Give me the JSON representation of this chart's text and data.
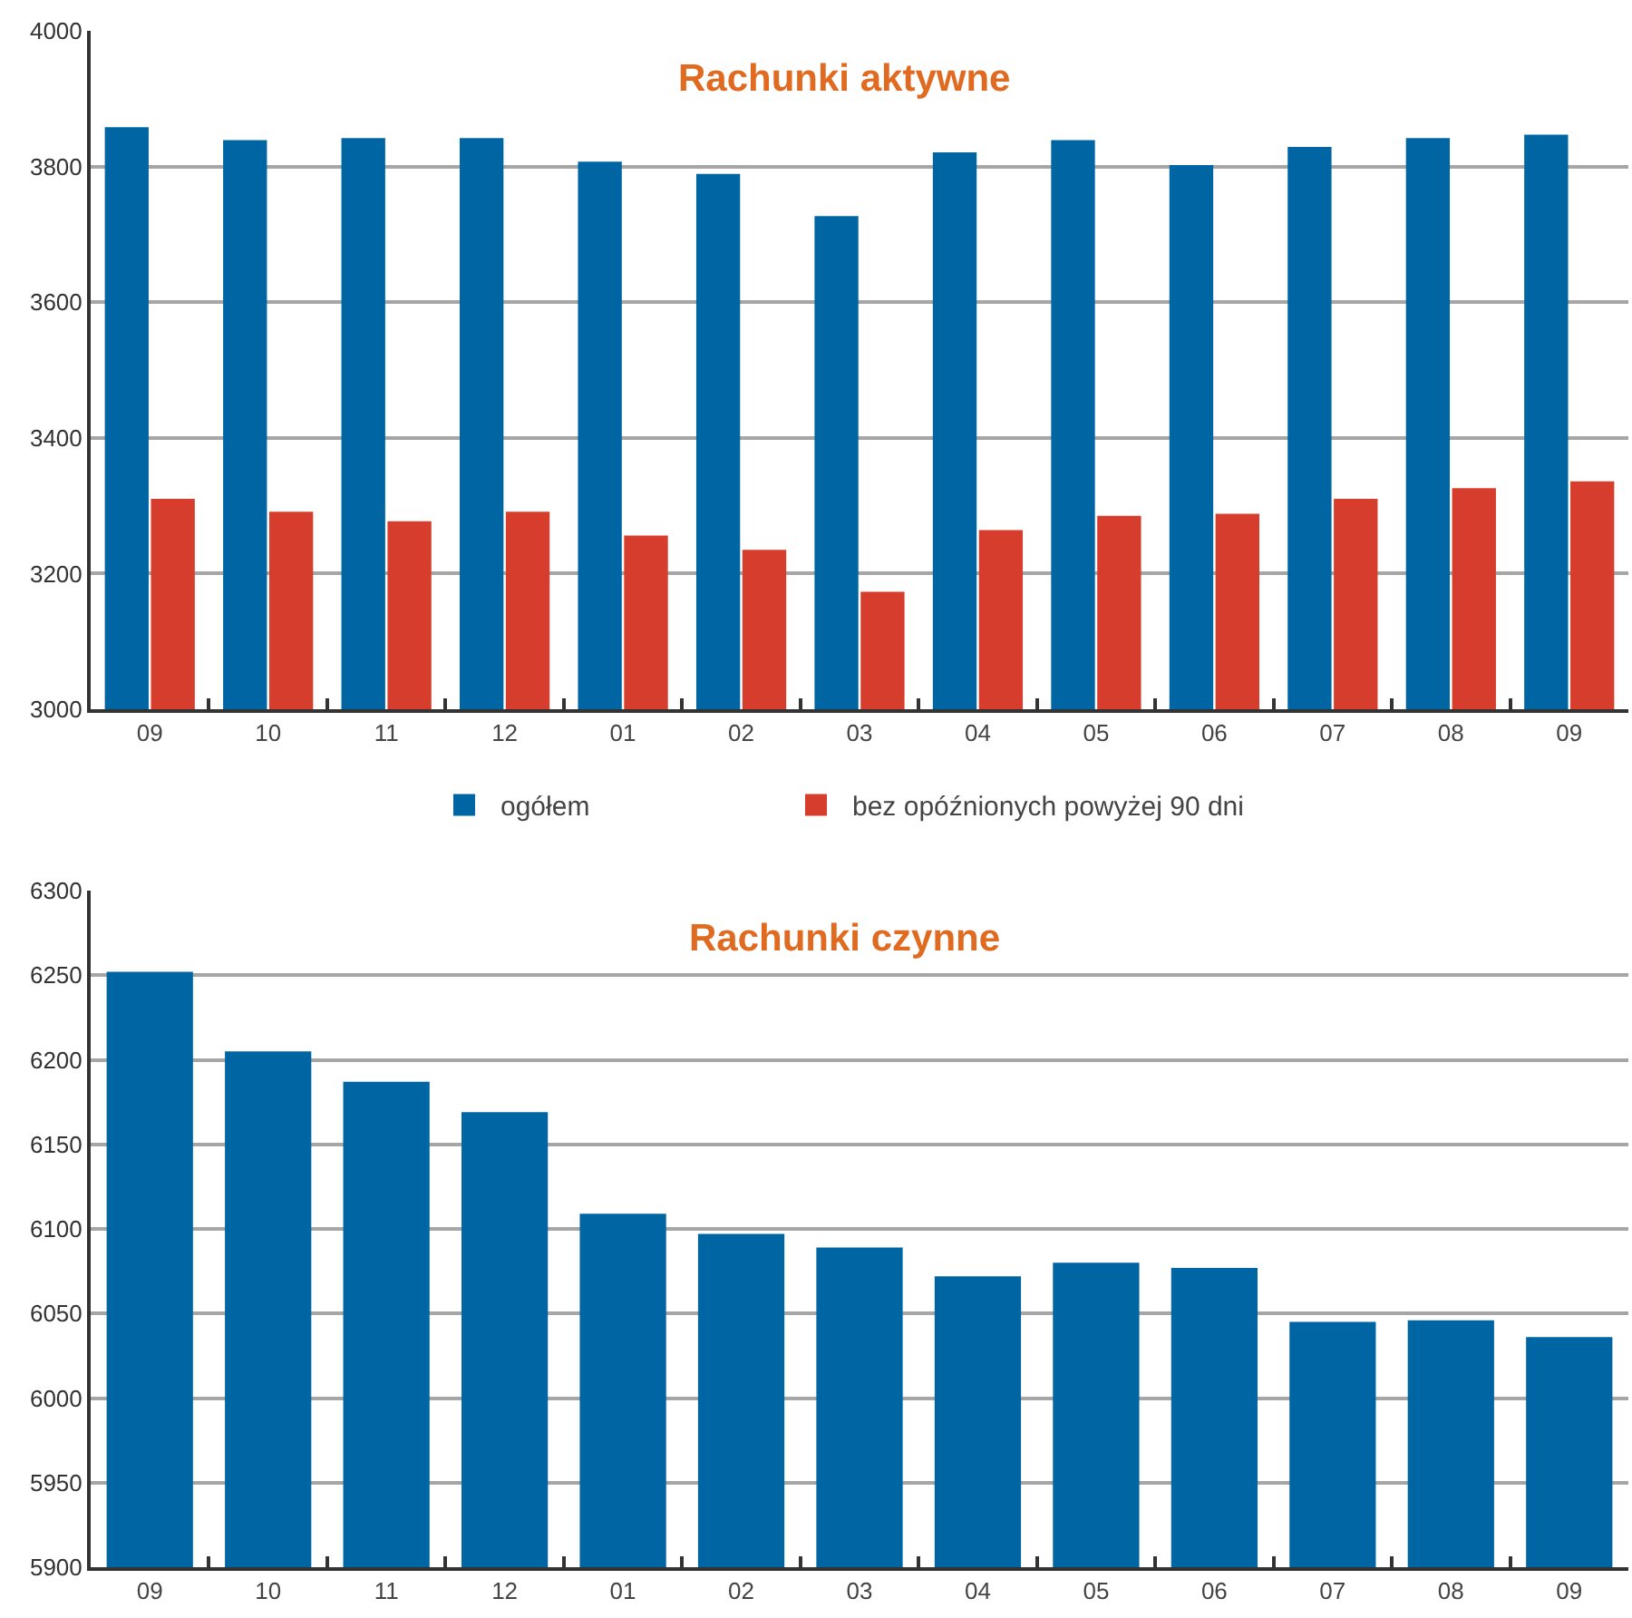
{
  "chart_data": [
    {
      "type": "bar",
      "title": "Rachunki aktywne",
      "categories": [
        "09",
        "10",
        "11",
        "12",
        "01",
        "02",
        "03",
        "04",
        "05",
        "06",
        "07",
        "08",
        "09"
      ],
      "series": [
        {
          "name": "ogółem",
          "color": "#0066a3",
          "values": [
            3858,
            3839,
            3842,
            3842,
            3807,
            3789,
            3727,
            3821,
            3839,
            3802,
            3829,
            3842,
            3847
          ]
        },
        {
          "name": "bez opóźnionych powyżej 90 dni",
          "color": "#d63d2c",
          "values": [
            3310,
            3291,
            3277,
            3291,
            3256,
            3235,
            3173,
            3264,
            3285,
            3288,
            3310,
            3326,
            3336
          ]
        }
      ],
      "ylim": [
        3000,
        4000
      ],
      "yticks": [
        3000,
        3200,
        3400,
        3600,
        3800,
        4000
      ],
      "grid": "y",
      "legend": "bottom"
    },
    {
      "type": "bar",
      "title": "Rachunki czynne",
      "categories": [
        "09",
        "10",
        "11",
        "12",
        "01",
        "02",
        "03",
        "04",
        "05",
        "06",
        "07",
        "08",
        "09"
      ],
      "values": [
        6252,
        6205,
        6187,
        6169,
        6109,
        6097,
        6089,
        6072,
        6080,
        6077,
        6045,
        6046,
        6036
      ],
      "color": "#0066a3",
      "ylim": [
        5900,
        6300
      ],
      "yticks": [
        5900,
        5950,
        6000,
        6050,
        6100,
        6150,
        6200,
        6250,
        6300
      ],
      "grid": "y",
      "legend": false
    }
  ]
}
